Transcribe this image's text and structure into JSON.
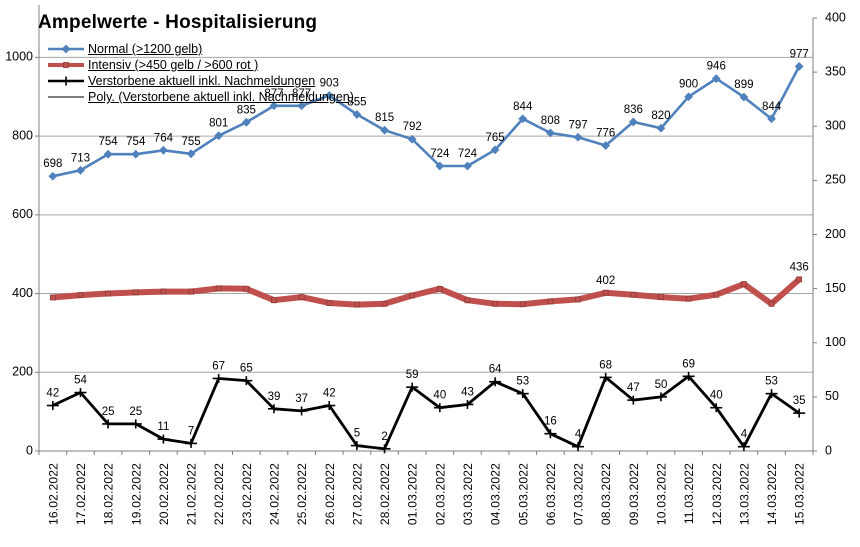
{
  "title": "Ampelwerte - Hospitalisierung",
  "legend": {
    "items": [
      {
        "label": "Normal (>1200 gelb)",
        "marker": "diamond",
        "color": "#4F81BD"
      },
      {
        "label": "Intensiv (>450 gelb / >600 rot )",
        "marker": "square",
        "color": "#C0504D"
      },
      {
        "label": "Verstorbene aktuell inkl. Nachmeldungen",
        "marker": "plus",
        "color": "#000000"
      },
      {
        "label": "Poly. (Verstorbene aktuell inkl. Nachmeldungen)",
        "marker": "line",
        "color": "#000000"
      }
    ]
  },
  "chart_data": {
    "type": "line",
    "title": "Ampelwerte - Hospitalisierung",
    "categories": [
      "16.02.2022",
      "17.02.2022",
      "18.02.2022",
      "19.02.2022",
      "20.02.2022",
      "21.02.2022",
      "22.02.2022",
      "23.02.2022",
      "24.02.2022",
      "25.02.2022",
      "26.02.2022",
      "27.02.2022",
      "28.02.2022",
      "01.03.2022",
      "02.03.2022",
      "03.03.2022",
      "04.03.2022",
      "05.03.2022",
      "06.03.2022",
      "07.03.2022",
      "08.03.2022",
      "09.03.2022",
      "10.03.2022",
      "11.03.2022",
      "12.03.2022",
      "13.03.2022",
      "14.03.2022",
      "15.03.2022"
    ],
    "left_axis": {
      "min": 0,
      "max": 1100,
      "ticks": [
        0,
        200,
        400,
        600,
        800,
        1000
      ],
      "gridlines": true
    },
    "right_axis": {
      "min": 0,
      "max": 400,
      "ticks": [
        0,
        50,
        100,
        150,
        200,
        250,
        300,
        350,
        400
      ],
      "gridlines": false
    },
    "legend_position": "top-left-inside",
    "series": [
      {
        "name": "Normal (>1200 gelb)",
        "axis": "left",
        "color": "#4F81BD",
        "marker": "diamond",
        "line_width": 2.6,
        "data_labels": "all",
        "values": [
          698,
          713,
          754,
          754,
          764,
          755,
          801,
          835,
          877,
          877,
          903,
          855,
          815,
          792,
          724,
          724,
          765,
          844,
          808,
          797,
          776,
          836,
          820,
          900,
          946,
          899,
          844,
          977
        ],
        "trend": {
          "order": 4,
          "style": "dashed",
          "color": "#4F81BD"
        }
      },
      {
        "name": "Intensiv (>450 gelb / >600 rot )",
        "axis": "left",
        "color": "#C0504D",
        "marker": "square",
        "line_width": 6,
        "data_labels": "some",
        "label_indices": [
          20,
          27
        ],
        "values": [
          390,
          396,
          400,
          403,
          405,
          405,
          413,
          412,
          383,
          391,
          376,
          372,
          374,
          395,
          412,
          383,
          374,
          373,
          380,
          385,
          402,
          397,
          391,
          387,
          397,
          424,
          374,
          436
        ],
        "trend": {
          "order": 2,
          "style": "dash-dot",
          "color": "#FF0000"
        }
      },
      {
        "name": "Verstorbene aktuell inkl. Nachmeldungen",
        "axis": "right",
        "color": "#000000",
        "marker": "plus",
        "line_width": 2.8,
        "data_labels": "all",
        "values": [
          42,
          54,
          25,
          25,
          11,
          7,
          67,
          65,
          39,
          37,
          42,
          5,
          2,
          59,
          40,
          43,
          64,
          53,
          16,
          4,
          68,
          47,
          50,
          69,
          40,
          4,
          53,
          35
        ],
        "trend": {
          "order": 3,
          "style": "solid",
          "color": "#000000"
        }
      }
    ],
    "colors": {
      "gridline": "#A6A6A6",
      "axis": "#808080",
      "label": "#000000"
    }
  }
}
